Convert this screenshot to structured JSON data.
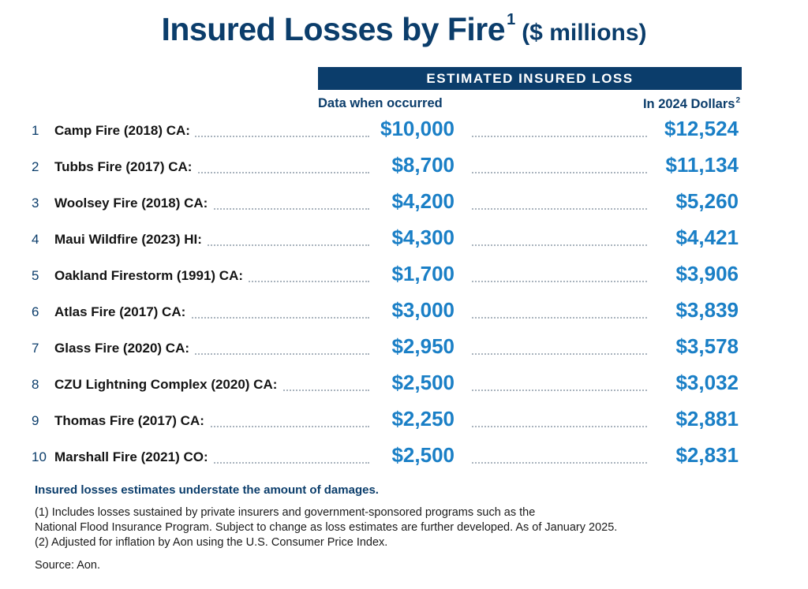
{
  "title": {
    "main": "Insured Losses by Fire",
    "sup": "1",
    "unit": "($ millions)"
  },
  "band_label": "ESTIMATED INSURED LOSS",
  "columns": {
    "left": "Data when occurred",
    "right": "In 2024 Dollars",
    "right_sup": "2"
  },
  "chart_data": {
    "type": "table",
    "title": "Insured Losses by Fire ($ millions)",
    "columns": [
      "Data when occurred",
      "In 2024 Dollars"
    ],
    "rows": [
      {
        "rank": "1",
        "name": "Camp Fire (2018) CA:",
        "occurred": 10000,
        "occurred_label": "$10,000",
        "adjusted": 12524,
        "adjusted_label": "$12,524"
      },
      {
        "rank": "2",
        "name": "Tubbs Fire (2017) CA:",
        "occurred": 8700,
        "occurred_label": "$8,700",
        "adjusted": 11134,
        "adjusted_label": "$11,134"
      },
      {
        "rank": "3",
        "name": "Woolsey Fire (2018) CA:",
        "occurred": 4200,
        "occurred_label": "$4,200",
        "adjusted": 5260,
        "adjusted_label": "$5,260"
      },
      {
        "rank": "4",
        "name": "Maui Wildfire (2023) HI:",
        "occurred": 4300,
        "occurred_label": "$4,300",
        "adjusted": 4421,
        "adjusted_label": "$4,421"
      },
      {
        "rank": "5",
        "name": "Oakland Firestorm (1991) CA:",
        "occurred": 1700,
        "occurred_label": "$1,700",
        "adjusted": 3906,
        "adjusted_label": "$3,906"
      },
      {
        "rank": "6",
        "name": "Atlas Fire (2017) CA:",
        "occurred": 3000,
        "occurred_label": "$3,000",
        "adjusted": 3839,
        "adjusted_label": "$3,839"
      },
      {
        "rank": "7",
        "name": "Glass Fire (2020) CA:",
        "occurred": 2950,
        "occurred_label": "$2,950",
        "adjusted": 3578,
        "adjusted_label": "$3,578"
      },
      {
        "rank": "8",
        "name": "CZU Lightning Complex (2020) CA:",
        "occurred": 2500,
        "occurred_label": "$2,500",
        "adjusted": 3032,
        "adjusted_label": "$3,032"
      },
      {
        "rank": "9",
        "name": "Thomas Fire (2017) CA:",
        "occurred": 2250,
        "occurred_label": "$2,250",
        "adjusted": 2881,
        "adjusted_label": "$2,881"
      },
      {
        "rank": "10",
        "name": "Marshall Fire (2021) CO:",
        "occurred": 2500,
        "occurred_label": "$2,500",
        "adjusted": 2831,
        "adjusted_label": "$2,831"
      }
    ]
  },
  "notes": {
    "highlight": "Insured losses estimates understate the amount of damages.",
    "footnote1_line1": "(1) Includes losses sustained by private insurers and government-sponsored programs such as the",
    "footnote1_line2": "National Flood Insurance Program. Subject to change as loss estimates are further developed. As of January 2025.",
    "footnote2": "(2) Adjusted for inflation by Aon using the U.S. Consumer Price Index.",
    "source": "Source: Aon."
  },
  "colors": {
    "navy": "#0b3d6b",
    "value_blue": "#1a7fc6",
    "dots": "#a9b3bd"
  }
}
